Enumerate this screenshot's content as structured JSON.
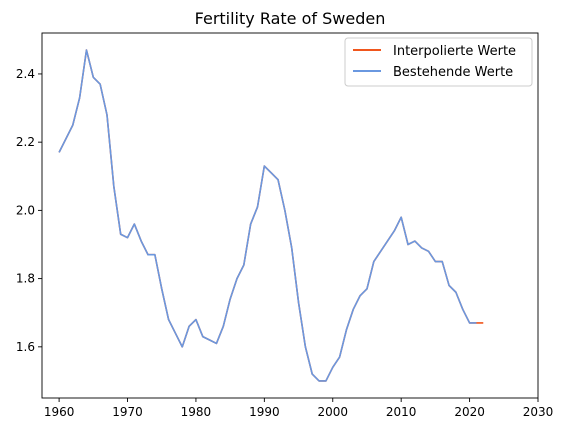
{
  "chart_data": {
    "type": "line",
    "title": "Fertility Rate of Sweden",
    "xlabel": "",
    "ylabel": "",
    "xlim": [
      1957.5,
      2030
    ],
    "ylim": [
      1.45,
      2.52
    ],
    "x_ticks": [
      1960,
      1970,
      1980,
      1990,
      2000,
      2010,
      2020,
      2030
    ],
    "y_ticks": [
      1.6,
      1.8,
      2.0,
      2.2,
      2.4
    ],
    "y_tick_labels": [
      "1.6",
      "1.8",
      "2.0",
      "2.2",
      "2.4"
    ],
    "grid": false,
    "legend_position": "top-right",
    "series": [
      {
        "name": "Interpolierte Werte",
        "color": "#f0561d",
        "x": [
          1960,
          1961,
          1962,
          1963,
          1964,
          1965,
          1966,
          1967,
          1968,
          1969,
          1970,
          1971,
          1972,
          1973,
          1974,
          1975,
          1976,
          1977,
          1978,
          1979,
          1980,
          1981,
          1982,
          1983,
          1984,
          1985,
          1986,
          1987,
          1988,
          1989,
          1990,
          1991,
          1992,
          1993,
          1994,
          1995,
          1996,
          1997,
          1998,
          1999,
          2000,
          2001,
          2002,
          2003,
          2004,
          2005,
          2006,
          2007,
          2008,
          2009,
          2010,
          2011,
          2012,
          2013,
          2014,
          2015,
          2016,
          2017,
          2018,
          2019,
          2020,
          2021,
          2022
        ],
        "values": [
          2.17,
          2.21,
          2.25,
          2.33,
          2.47,
          2.39,
          2.37,
          2.28,
          2.07,
          1.93,
          1.92,
          1.96,
          1.91,
          1.87,
          1.87,
          1.77,
          1.68,
          1.64,
          1.6,
          1.66,
          1.68,
          1.63,
          1.62,
          1.61,
          1.66,
          1.74,
          1.8,
          1.84,
          1.96,
          2.01,
          2.13,
          2.11,
          2.09,
          2.0,
          1.89,
          1.73,
          1.6,
          1.52,
          1.5,
          1.5,
          1.54,
          1.57,
          1.65,
          1.71,
          1.75,
          1.77,
          1.85,
          1.88,
          1.91,
          1.94,
          1.98,
          1.9,
          1.91,
          1.89,
          1.88,
          1.85,
          1.85,
          1.78,
          1.76,
          1.71,
          1.67,
          1.67,
          1.67
        ]
      },
      {
        "name": "Bestehende Werte",
        "color": "#6a98e0",
        "x": [
          1960,
          1961,
          1962,
          1963,
          1964,
          1965,
          1966,
          1967,
          1968,
          1969,
          1970,
          1971,
          1972,
          1973,
          1974,
          1975,
          1976,
          1977,
          1978,
          1979,
          1980,
          1981,
          1982,
          1983,
          1984,
          1985,
          1986,
          1987,
          1988,
          1989,
          1990,
          1991,
          1992,
          1993,
          1994,
          1995,
          1996,
          1997,
          1998,
          1999,
          2000,
          2001,
          2002,
          2003,
          2004,
          2005,
          2006,
          2007,
          2008,
          2009,
          2010,
          2011,
          2012,
          2013,
          2014,
          2015,
          2016,
          2017,
          2018,
          2019,
          2020,
          2021
        ],
        "values": [
          2.17,
          2.21,
          2.25,
          2.33,
          2.47,
          2.39,
          2.37,
          2.28,
          2.07,
          1.93,
          1.92,
          1.96,
          1.91,
          1.87,
          1.87,
          1.77,
          1.68,
          1.64,
          1.6,
          1.66,
          1.68,
          1.63,
          1.62,
          1.61,
          1.66,
          1.74,
          1.8,
          1.84,
          1.96,
          2.01,
          2.13,
          2.11,
          2.09,
          2.0,
          1.89,
          1.73,
          1.6,
          1.52,
          1.5,
          1.5,
          1.54,
          1.57,
          1.65,
          1.71,
          1.75,
          1.77,
          1.85,
          1.88,
          1.91,
          1.94,
          1.98,
          1.9,
          1.91,
          1.89,
          1.88,
          1.85,
          1.85,
          1.78,
          1.76,
          1.71,
          1.67,
          1.67
        ]
      }
    ]
  }
}
